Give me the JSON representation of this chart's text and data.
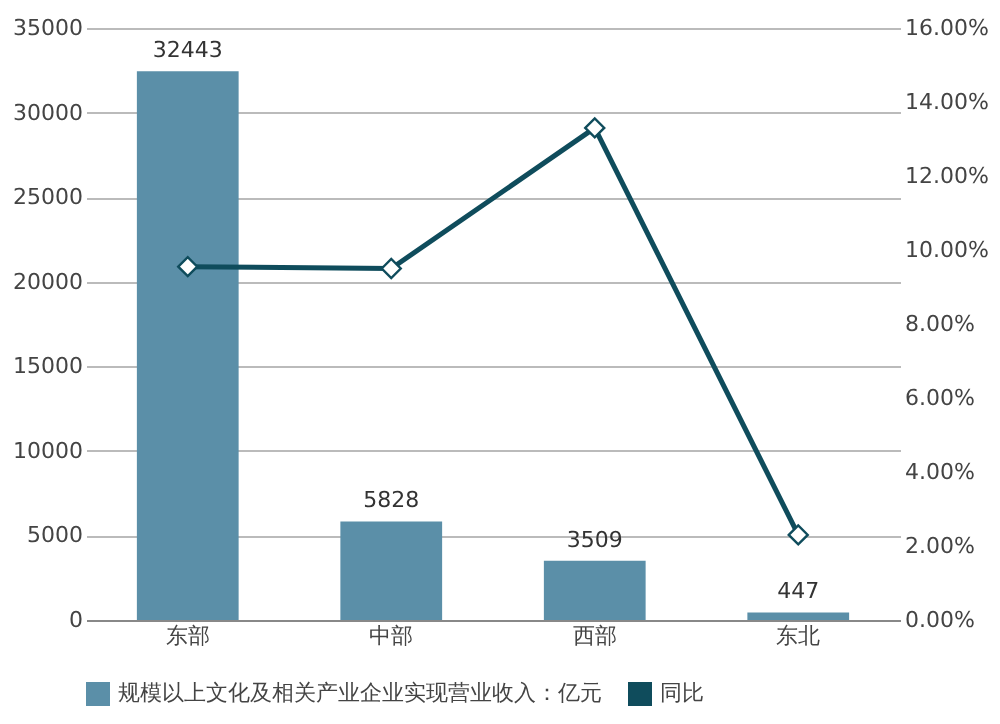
{
  "chart_data": {
    "type": "bar",
    "categories": [
      "东部",
      "中部",
      "西部",
      "东北"
    ],
    "series": [
      {
        "name": "规模以上文化及相关产业企业实现营业收入：亿元",
        "color": "#5b8fa8",
        "values": [
          32443,
          5828,
          3509,
          447
        ],
        "value_labels": [
          "32443",
          "5828",
          "3509",
          "447"
        ]
      },
      {
        "name": "同比",
        "type": "line",
        "axis": "y2",
        "color": "#0f4c5c",
        "values": [
          9.55,
          9.5,
          13.3,
          2.3
        ],
        "marker": "diamond"
      }
    ],
    "ylim": [
      0,
      35000
    ],
    "yticks": [
      0,
      5000,
      10000,
      15000,
      20000,
      25000,
      30000,
      35000
    ],
    "y2lim": [
      0,
      16
    ],
    "y2ticks": [
      {
        "value": 0,
        "label": "0.00%"
      },
      {
        "value": 2,
        "label": "2.00%"
      },
      {
        "value": 4,
        "label": "4.00%"
      },
      {
        "value": 6,
        "label": "6.00%"
      },
      {
        "value": 8,
        "label": "8.00%"
      },
      {
        "value": 10,
        "label": "10.00%"
      },
      {
        "value": 12,
        "label": "12.00%"
      },
      {
        "value": 14,
        "label": "14.00%"
      },
      {
        "value": 16,
        "label": "16.00%"
      }
    ],
    "grid": "y",
    "legend": "bottom"
  }
}
